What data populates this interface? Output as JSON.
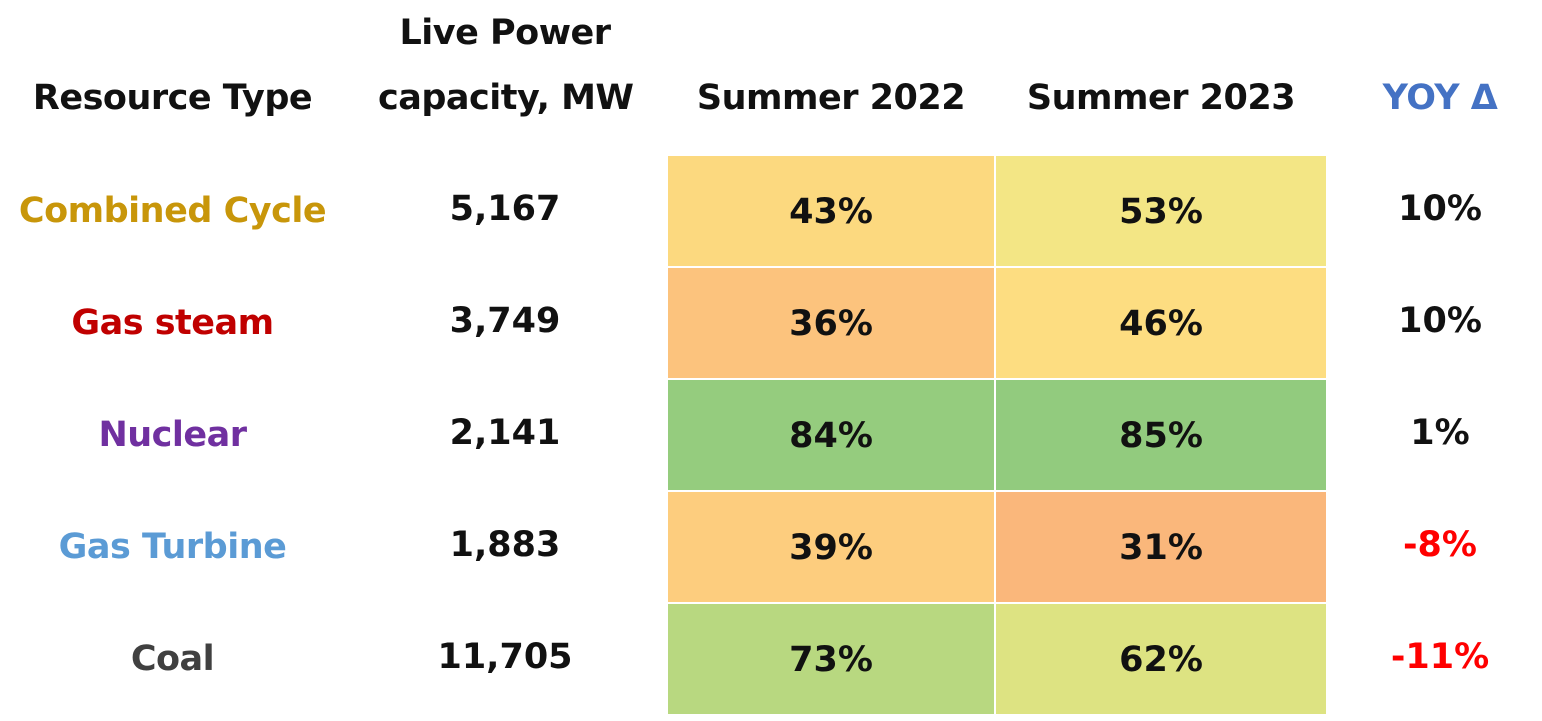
{
  "chart_data": {
    "type": "table",
    "columns": {
      "resource_type": "Resource Type",
      "capacity_line1": "Live Power",
      "capacity_line2": "capacity, MW",
      "summer_2022": "Summer 2022",
      "summer_2023": "Summer 2023",
      "yoy": "YOY Δ"
    },
    "rows": [
      {
        "resource": "Combined Cycle",
        "capacity": "5,167",
        "summer_2022": "43%",
        "summer_2023": "53%",
        "yoy": "10%",
        "label_color": "#c8960a",
        "yoy_color": "#111111",
        "color_2022": "#fcd97f",
        "color_2023": "#f3e685"
      },
      {
        "resource": "Gas steam",
        "capacity": "3,749",
        "summer_2022": "36%",
        "summer_2023": "46%",
        "yoy": "10%",
        "label_color": "#c00000",
        "yoy_color": "#111111",
        "color_2022": "#fcc37d",
        "color_2023": "#fddd81"
      },
      {
        "resource": "Nuclear",
        "capacity": "2,141",
        "summer_2022": "84%",
        "summer_2023": "85%",
        "yoy": "1%",
        "label_color": "#7030a0",
        "yoy_color": "#111111",
        "color_2022": "#95cc7e",
        "color_2023": "#92cb7e"
      },
      {
        "resource": "Gas Turbine",
        "capacity": "1,883",
        "summer_2022": "39%",
        "summer_2023": "31%",
        "yoy": "-8%",
        "label_color": "#5b9bd5",
        "yoy_color": "#ff0000",
        "color_2022": "#fdcd7e",
        "color_2023": "#fab77b"
      },
      {
        "resource": "Coal",
        "capacity": "11,705",
        "summer_2022": "73%",
        "summer_2023": "62%",
        "yoy": "-11%",
        "label_color": "#404040",
        "yoy_color": "#ff0000",
        "color_2022": "#b8d880",
        "color_2023": "#dde382"
      }
    ]
  },
  "colors": {
    "header_text": "#111111",
    "yoy_header": "#4472c4"
  }
}
